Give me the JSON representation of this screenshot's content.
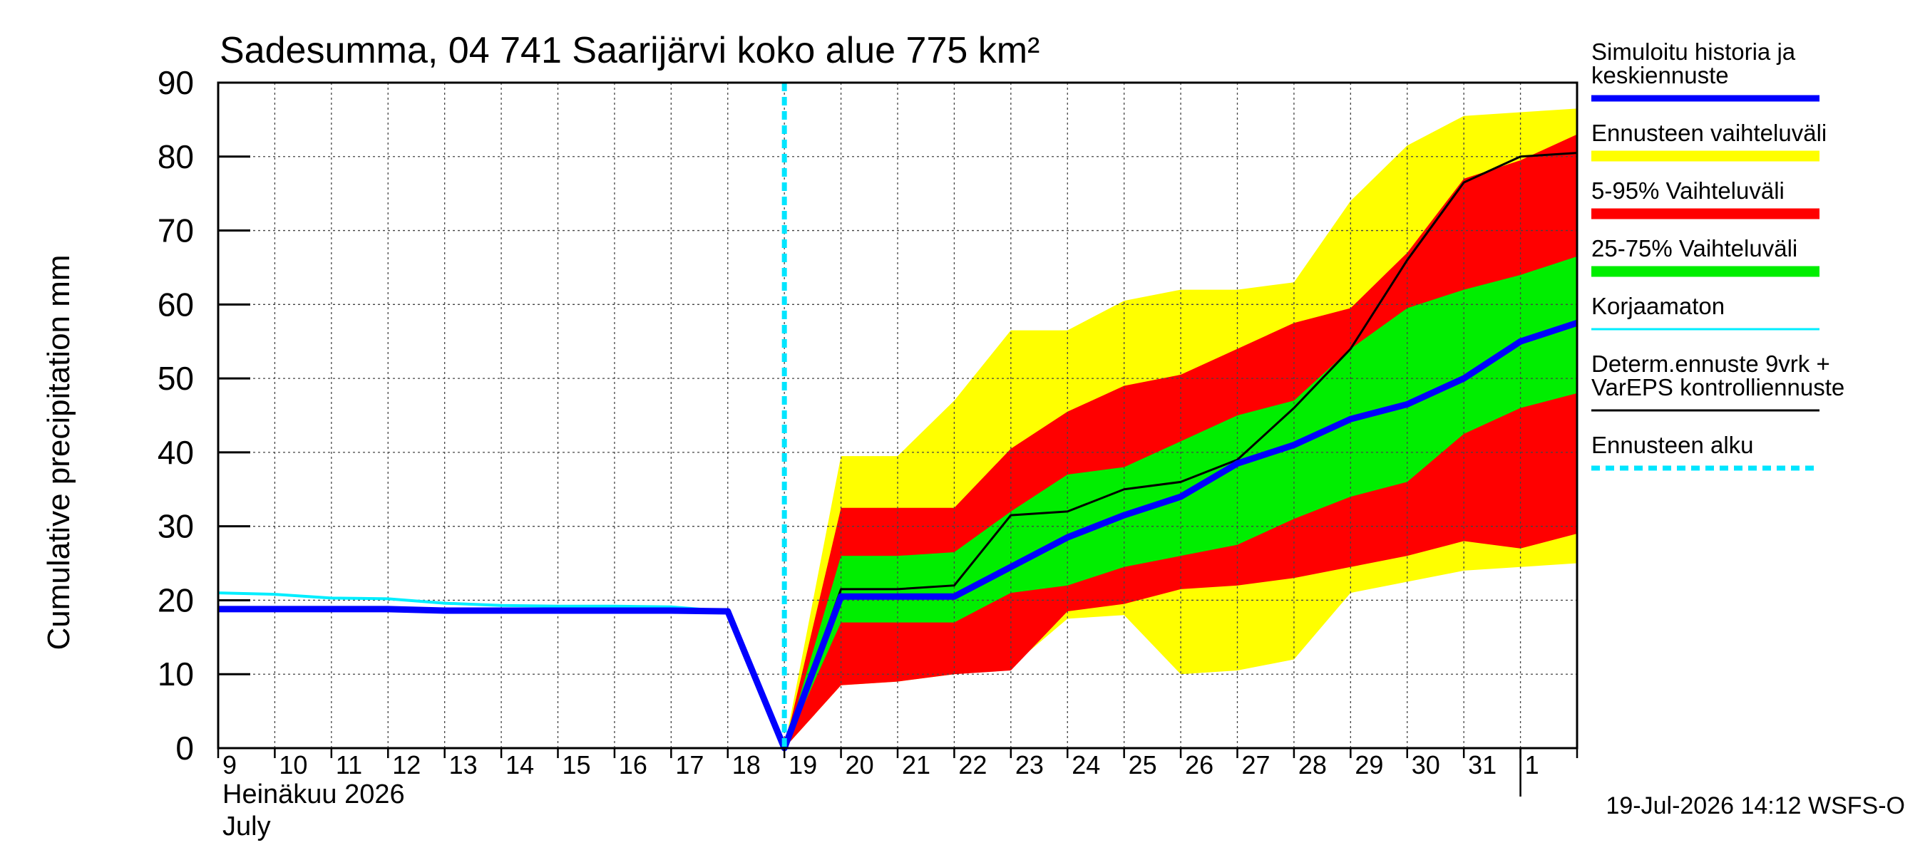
{
  "chart_data": {
    "type": "area",
    "title": "Sadesumma, 04 741 Saarijärvi koko alue 775 km²",
    "ylabel": "Cumulative precipitation   mm",
    "xlabel_fi": "Heinäkuu  2026",
    "xlabel_en": "July",
    "ylim": [
      0,
      90
    ],
    "yticks": [
      0,
      10,
      20,
      30,
      40,
      50,
      60,
      70,
      80,
      90
    ],
    "xlim": [
      0,
      24
    ],
    "day_labels": [
      "9",
      "10",
      "11",
      "12",
      "13",
      "14",
      "15",
      "16",
      "17",
      "18",
      "19",
      "20",
      "21",
      "22",
      "23",
      "24",
      "25",
      "26",
      "27",
      "28",
      "29",
      "30",
      "31",
      "1"
    ],
    "grid": true,
    "forecast_start_x": 10,
    "timestamp": "19-Jul-2026 14:12 WSFS-O",
    "legend_position": "right",
    "legend": [
      {
        "label_lines": [
          "Simuloitu historia ja",
          "keskiennuste"
        ],
        "color": "#0000ff",
        "style": "thick"
      },
      {
        "label_lines": [
          "Ennusteen vaihteluväli"
        ],
        "color": "#ffff00",
        "style": "band"
      },
      {
        "label_lines": [
          "5-95% Vaihteluväli"
        ],
        "color": "#ff0000",
        "style": "band"
      },
      {
        "label_lines": [
          "25-75% Vaihteluväli"
        ],
        "color": "#00ee00",
        "style": "band"
      },
      {
        "label_lines": [
          "Korjaamaton"
        ],
        "color": "#00eeff",
        "style": "thin"
      },
      {
        "label_lines": [
          "Determ.ennuste 9vrk +",
          "VarEPS kontrolliennuste"
        ],
        "color": "#000000",
        "style": "thin"
      },
      {
        "label_lines": [
          "Ennusteen alku"
        ],
        "color": "#00e5ff",
        "style": "dashed"
      }
    ],
    "series": {
      "ennuste_range": {
        "x": [
          10,
          11,
          12,
          13,
          14,
          15,
          16,
          17,
          18,
          19,
          20,
          21,
          22,
          23,
          24
        ],
        "upper": [
          0,
          39.5,
          39.5,
          47,
          56.5,
          56.5,
          60.5,
          62,
          62,
          63,
          74,
          81.5,
          85.5,
          86,
          86.5
        ],
        "lower": [
          0,
          8.5,
          9,
          10,
          11,
          17.5,
          18,
          10,
          10.5,
          12,
          21,
          22.5,
          24,
          24.5,
          25
        ]
      },
      "p5_95": {
        "x": [
          10,
          11,
          12,
          13,
          14,
          15,
          16,
          17,
          18,
          19,
          20,
          21,
          22,
          23,
          24
        ],
        "upper": [
          0,
          32.5,
          32.5,
          32.5,
          40.5,
          45.5,
          49,
          50.5,
          54,
          57.5,
          59.5,
          67,
          77,
          79.5,
          83
        ],
        "lower": [
          0,
          8.5,
          9,
          10,
          10.5,
          18.5,
          19.5,
          21.5,
          22,
          23,
          24.5,
          26,
          28,
          27,
          29
        ]
      },
      "p25_75": {
        "x": [
          10,
          11,
          12,
          13,
          14,
          15,
          16,
          17,
          18,
          19,
          20,
          21,
          22,
          23,
          24
        ],
        "upper": [
          0,
          26,
          26,
          26.5,
          32,
          37,
          38,
          41.5,
          45,
          47,
          54,
          59.5,
          62,
          64,
          66.5
        ],
        "lower": [
          0,
          17,
          17,
          17,
          21,
          22,
          24.5,
          26,
          27.5,
          31,
          34,
          36,
          42.5,
          46,
          48
        ]
      },
      "korjaamaton": {
        "x": [
          0,
          1,
          2,
          3,
          4,
          5,
          6,
          7,
          8,
          9
        ],
        "y": [
          21,
          20.8,
          20.3,
          20.2,
          19.6,
          19.3,
          19.2,
          19.2,
          19.1,
          18.5
        ]
      },
      "determ": {
        "x": [
          10,
          11,
          12,
          13,
          14,
          15,
          16,
          17,
          18,
          19,
          20,
          21,
          22,
          23,
          24
        ],
        "y": [
          0,
          21.5,
          21.5,
          22,
          31.5,
          32,
          35,
          36,
          39,
          46,
          54,
          66,
          76.5,
          80,
          80.5
        ]
      },
      "median": {
        "x": [
          0,
          1,
          2,
          3,
          4,
          5,
          6,
          7,
          8,
          9,
          10,
          11,
          12,
          13,
          14,
          15,
          16,
          17,
          18,
          19,
          20,
          21,
          22,
          23,
          24
        ],
        "y": [
          18.8,
          18.8,
          18.8,
          18.8,
          18.6,
          18.6,
          18.6,
          18.6,
          18.6,
          18.5,
          0,
          20.5,
          20.5,
          20.5,
          24.5,
          28.5,
          31.5,
          34,
          38.5,
          41,
          44.5,
          46.5,
          50,
          55,
          57.5
        ]
      }
    }
  }
}
